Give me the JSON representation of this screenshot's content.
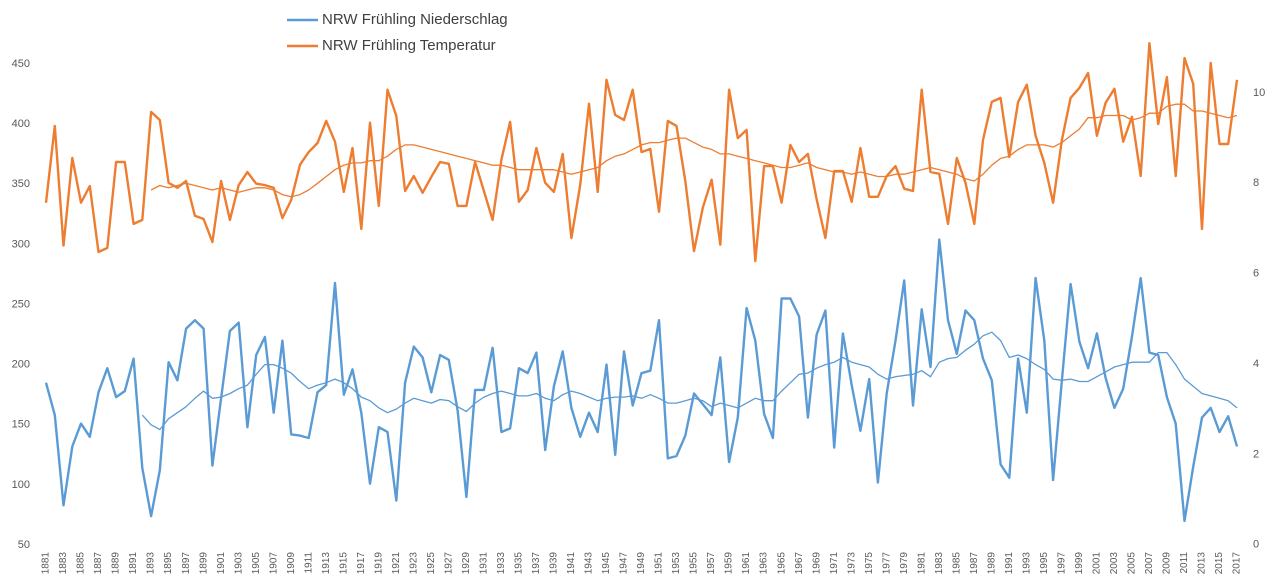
{
  "chart_data": {
    "type": "line",
    "categories": [
      "1881",
      null,
      "1883",
      null,
      "1885",
      null,
      "1887",
      null,
      "1889",
      null,
      "1891",
      null,
      "1893",
      null,
      "1895",
      null,
      "1897",
      null,
      "1899",
      null,
      "1901",
      null,
      "1903",
      null,
      "1905",
      null,
      "1907",
      null,
      "1909",
      null,
      "1911",
      null,
      "1913",
      null,
      "1915",
      null,
      "1917",
      null,
      "1919",
      null,
      "1921",
      null,
      "1923",
      null,
      "1925",
      null,
      "1927",
      null,
      "1929",
      null,
      "1931",
      null,
      "1933",
      null,
      "1935",
      null,
      "1937",
      null,
      "1939",
      null,
      "1941",
      null,
      "1943",
      null,
      "1945",
      null,
      "1947",
      null,
      "1949",
      null,
      "1951",
      null,
      "1953",
      null,
      "1955",
      null,
      "1957",
      null,
      "1959",
      null,
      "1961",
      null,
      "1963",
      null,
      "1965",
      null,
      "1967",
      null,
      "1969",
      null,
      "1971",
      null,
      "1973",
      null,
      "1975",
      null,
      "1977",
      null,
      "1979",
      null,
      "1981",
      null,
      "1983",
      null,
      "1985",
      null,
      "1987",
      null,
      "1989",
      null,
      "1991",
      null,
      "1993",
      null,
      "1995",
      null,
      "1997",
      null,
      "1999",
      null,
      "2001",
      null,
      "2003",
      null,
      "2005",
      null,
      "2007",
      null,
      "2009",
      null,
      "2011",
      null,
      "2013",
      null,
      "2015",
      null,
      "2017"
    ],
    "series": [
      {
        "name": "NRW Frühling  Niederschlag",
        "color": "#5b9bd5",
        "values": [
          185,
          158,
          83,
          132,
          151,
          140,
          177,
          197,
          173,
          178,
          205,
          114,
          74,
          112,
          202,
          187,
          230,
          237,
          230,
          116,
          172,
          228,
          235,
          148,
          208,
          223,
          160,
          220,
          142,
          141,
          139,
          177,
          183,
          268,
          175,
          196,
          160,
          101,
          148,
          144,
          87,
          185,
          215,
          206,
          177,
          208,
          204,
          162,
          90,
          179,
          179,
          214,
          144,
          147,
          197,
          193,
          210,
          129,
          182,
          211,
          164,
          140,
          160,
          144,
          200,
          125,
          211,
          166,
          193,
          195,
          237,
          122,
          124,
          141,
          176,
          167,
          158,
          206,
          119,
          156,
          247,
          220,
          159,
          139,
          255,
          255,
          240,
          156,
          225,
          245,
          131,
          226,
          183,
          145,
          188,
          102,
          176,
          220,
          270,
          166,
          246,
          198,
          304,
          237,
          209,
          245,
          237,
          205,
          187,
          117,
          106,
          205,
          160,
          272,
          220,
          104,
          187,
          267,
          219,
          197,
          226,
          189,
          164,
          180,
          223,
          272,
          210,
          208,
          173,
          151,
          70,
          115,
          156,
          164,
          144,
          157,
          132
        ]
      },
      {
        "name": "NRW Frühling Temperatur",
        "color": "#ed7d31",
        "axis": "y2",
        "values": [
          7.57,
          9.27,
          6.62,
          8.56,
          7.57,
          7.94,
          6.48,
          6.57,
          8.47,
          8.47,
          7.1,
          7.19,
          9.58,
          9.4,
          8.01,
          7.9,
          8.05,
          7.28,
          7.21,
          6.7,
          8.05,
          7.19,
          7.96,
          8.25,
          7.99,
          7.96,
          7.9,
          7.23,
          7.63,
          8.41,
          8.69,
          8.89,
          9.38,
          8.92,
          7.81,
          8.78,
          6.99,
          9.34,
          7.5,
          10.07,
          9.49,
          7.83,
          8.16,
          7.79,
          8.14,
          8.47,
          8.43,
          7.5,
          7.5,
          8.47,
          7.83,
          7.19,
          8.52,
          9.36,
          7.59,
          7.85,
          8.78,
          8.01,
          7.81,
          8.65,
          6.79,
          7.96,
          9.76,
          7.81,
          10.29,
          9.51,
          9.4,
          10.07,
          8.69,
          8.76,
          7.37,
          9.38,
          9.27,
          8.05,
          6.5,
          7.46,
          8.08,
          6.64,
          10.07,
          9.0,
          9.18,
          6.28,
          8.38,
          8.38,
          7.57,
          8.85,
          8.47,
          8.65,
          7.65,
          6.79,
          8.27,
          8.27,
          7.59,
          8.78,
          7.7,
          7.7,
          8.16,
          8.38,
          7.88,
          7.83,
          10.07,
          8.25,
          8.21,
          7.1,
          8.56,
          8.01,
          7.1,
          8.96,
          9.8,
          9.89,
          8.58,
          9.8,
          10.18,
          9.05,
          8.45,
          7.57,
          8.96,
          9.89,
          10.11,
          10.44,
          9.05,
          9.78,
          10.09,
          8.92,
          9.47,
          8.16,
          11.1,
          9.31,
          10.35,
          8.16,
          10.77,
          10.2,
          6.99,
          10.66,
          8.87,
          8.87,
          10.29
        ]
      },
      {
        "color": "#5b9bd5",
        "values": [
          null,
          null,
          null,
          null,
          null,
          null,
          null,
          null,
          null,
          null,
          null,
          158,
          150,
          146,
          155,
          160,
          165,
          172,
          178,
          172,
          173,
          176,
          180,
          183,
          192,
          200,
          200,
          197,
          193,
          186,
          180,
          183,
          185,
          188,
          185,
          180,
          173,
          170,
          164,
          160,
          163,
          168,
          172,
          170,
          168,
          171,
          170,
          165,
          161,
          168,
          173,
          176,
          178,
          176,
          174,
          174,
          176,
          172,
          170,
          175,
          178,
          176,
          173,
          170,
          172,
          173,
          173,
          174,
          172,
          175,
          172,
          168,
          168,
          170,
          172,
          170,
          165,
          168,
          166,
          164,
          168,
          172,
          170,
          170,
          178,
          185,
          192,
          193,
          197,
          200,
          202,
          206,
          202,
          200,
          198,
          192,
          188,
          190,
          191,
          192,
          195,
          190,
          202,
          205,
          206,
          212,
          217,
          224,
          227,
          220,
          206,
          208,
          205,
          200,
          196,
          188,
          187,
          188,
          186,
          186,
          190,
          194,
          198,
          200,
          202,
          202,
          202,
          210,
          210,
          200,
          188,
          182,
          176,
          174,
          172,
          170,
          164
        ]
      },
      {
        "color": "#ed7d31",
        "axis": "y2",
        "values": [
          null,
          null,
          null,
          null,
          null,
          null,
          null,
          null,
          null,
          null,
          null,
          null,
          7.85,
          7.95,
          7.9,
          7.95,
          8.0,
          7.95,
          7.9,
          7.85,
          7.9,
          7.85,
          7.8,
          7.85,
          7.9,
          7.9,
          7.85,
          7.75,
          7.7,
          7.75,
          7.85,
          8.0,
          8.15,
          8.3,
          8.4,
          8.45,
          8.45,
          8.5,
          8.5,
          8.6,
          8.75,
          8.85,
          8.85,
          8.8,
          8.75,
          8.7,
          8.65,
          8.6,
          8.55,
          8.5,
          8.45,
          8.4,
          8.4,
          8.35,
          8.3,
          8.3,
          8.3,
          8.3,
          8.3,
          8.25,
          8.2,
          8.25,
          8.3,
          8.35,
          8.5,
          8.6,
          8.65,
          8.75,
          8.85,
          8.9,
          8.9,
          8.95,
          9.0,
          9.0,
          8.9,
          8.8,
          8.75,
          8.65,
          8.65,
          8.6,
          8.55,
          8.5,
          8.45,
          8.4,
          8.35,
          8.35,
          8.4,
          8.45,
          8.35,
          8.3,
          8.25,
          8.25,
          8.2,
          8.25,
          8.2,
          8.15,
          8.15,
          8.2,
          8.2,
          8.25,
          8.3,
          8.35,
          8.3,
          8.25,
          8.2,
          8.1,
          8.05,
          8.2,
          8.4,
          8.55,
          8.6,
          8.75,
          8.85,
          8.85,
          8.85,
          8.8,
          8.9,
          9.05,
          9.2,
          9.45,
          9.45,
          9.5,
          9.5,
          9.5,
          9.4,
          9.45,
          9.55,
          9.55,
          9.7,
          9.75,
          9.75,
          9.6,
          9.6,
          9.55,
          9.5,
          9.45,
          9.5
        ]
      }
    ],
    "ylim": [
      47.5,
      470
    ],
    "yticks": [
      50,
      100,
      150,
      200,
      250,
      300,
      350,
      400,
      450
    ],
    "y2lim": [
      -0.07,
      11.17
    ],
    "y2ticks": [
      0,
      2,
      4,
      6,
      8,
      10
    ],
    "grid": false,
    "legend": "top"
  }
}
